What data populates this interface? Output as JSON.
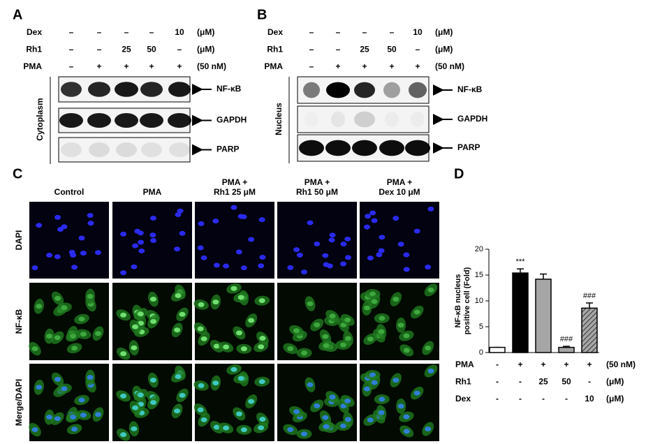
{
  "panel_a": {
    "label": "A",
    "conditions": [
      {
        "name": "Dex",
        "cells": [
          "–",
          "–",
          "–",
          "–",
          "10"
        ],
        "unit": "(μM)"
      },
      {
        "name": "Rh1",
        "cells": [
          "–",
          "–",
          "25",
          "50",
          "–"
        ],
        "unit": "(μM)"
      },
      {
        "name": "PMA",
        "cells": [
          "–",
          "+",
          "+",
          "+",
          "+"
        ],
        "unit": "(50 nM)"
      }
    ],
    "fraction": "Cytoplasm",
    "blots": [
      "NF-κB",
      "GAPDH",
      "PARP"
    ]
  },
  "panel_b": {
    "label": "B",
    "conditions": [
      {
        "name": "Dex",
        "cells": [
          "–",
          "–",
          "–",
          "–",
          "10"
        ],
        "unit": "(μM)"
      },
      {
        "name": "Rh1",
        "cells": [
          "–",
          "–",
          "25",
          "50",
          "–"
        ],
        "unit": "(μM)"
      },
      {
        "name": "PMA",
        "cells": [
          "–",
          "+",
          "+",
          "+",
          "+"
        ],
        "unit": "(50 nM)"
      }
    ],
    "fraction": "Nucleus",
    "blots": [
      "NF-κB",
      "GAPDH",
      "PARP"
    ]
  },
  "panel_c": {
    "label": "C",
    "columns": [
      [
        "Control"
      ],
      [
        "PMA"
      ],
      [
        "PMA +",
        "Rh1 25 μM"
      ],
      [
        "PMA +",
        "Rh1 50 μM"
      ],
      [
        "PMA +",
        "Dex 10 μM"
      ]
    ],
    "rows": [
      "DAPI",
      "NF-κB",
      "Merge/DAPI"
    ]
  },
  "chart_data": {
    "type": "bar",
    "label": "D",
    "y_label": [
      "NF-κB nucleus",
      "positive cell (Fold)"
    ],
    "values": [
      1,
      15.4,
      14.2,
      1,
      8.6
    ],
    "errors": [
      0,
      0.8,
      1.0,
      0.2,
      1.0
    ],
    "annotations": [
      null,
      "***",
      null,
      "###",
      "###"
    ],
    "colors": [
      "#ffffff",
      "#000000",
      "#a6a6a6",
      "#a6a6a6",
      "#a6a6a6"
    ],
    "hatch": [
      false,
      false,
      false,
      false,
      true
    ],
    "ylim": [
      0,
      20
    ],
    "yticks": [
      0,
      5,
      10,
      15,
      20
    ],
    "conditions": [
      {
        "name": "PMA",
        "cells": [
          "-",
          "+",
          "+",
          "+",
          "+"
        ],
        "unit": "(50 nM)"
      },
      {
        "name": "Rh1",
        "cells": [
          "-",
          "-",
          "25",
          "50",
          "-"
        ],
        "unit": "(μM)"
      },
      {
        "name": "Dex",
        "cells": [
          "-",
          "-",
          "-",
          "-",
          "10"
        ],
        "unit": "(μM)"
      }
    ]
  }
}
